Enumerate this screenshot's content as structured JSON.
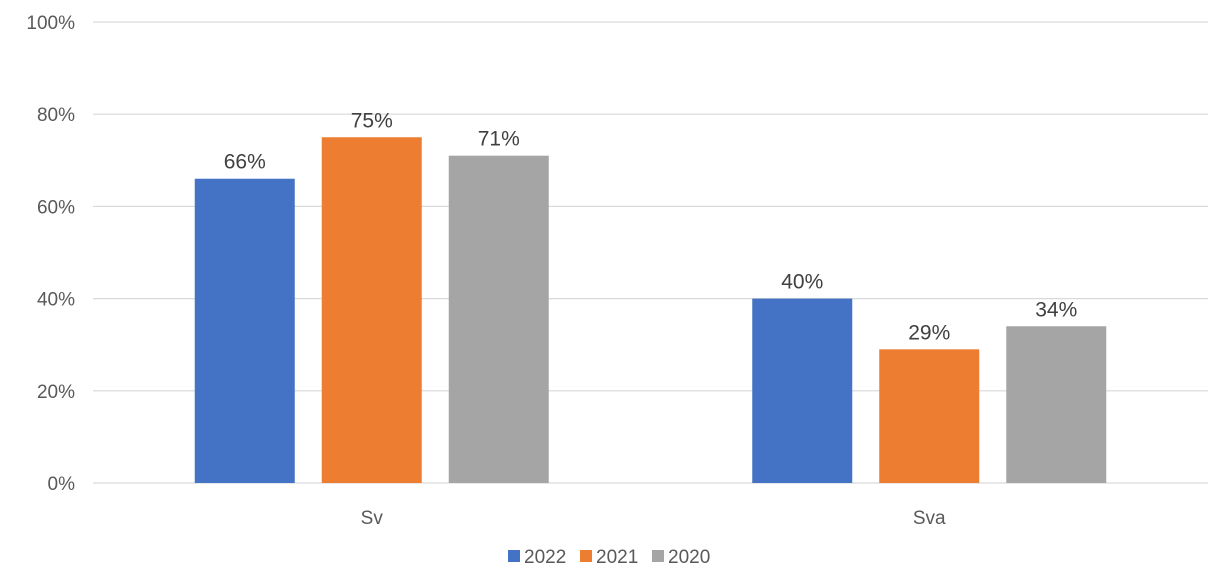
{
  "chart_data": {
    "type": "bar",
    "categories": [
      "Sv",
      "Sva"
    ],
    "series": [
      {
        "name": "2022",
        "values": [
          66,
          40
        ],
        "color": "#4472C4"
      },
      {
        "name": "2021",
        "values": [
          75,
          29
        ],
        "color": "#ED7D31"
      },
      {
        "name": "2020",
        "values": [
          71,
          34
        ],
        "color": "#A5A5A5"
      }
    ],
    "data_labels": [
      [
        "66%",
        "40%"
      ],
      [
        "75%",
        "29%"
      ],
      [
        "71%",
        "34%"
      ]
    ],
    "y_ticks": [
      "0%",
      "20%",
      "40%",
      "60%",
      "80%",
      "100%"
    ],
    "ylim": [
      0,
      100
    ],
    "grid": true,
    "legend": "bottom-center"
  }
}
